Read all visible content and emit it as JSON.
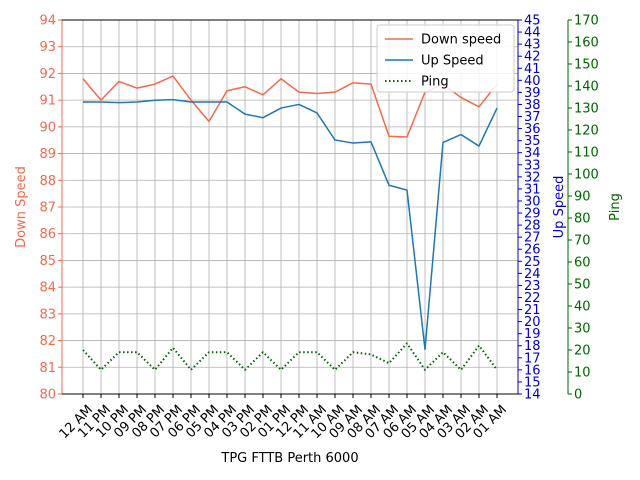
{
  "chart_data": {
    "type": "line",
    "xlabel": "TPG FTTB Perth 6000",
    "categories": [
      "12 AM",
      "11 PM",
      "10 PM",
      "09 PM",
      "08 PM",
      "07 PM",
      "06 PM",
      "05 PM",
      "04 PM",
      "03 PM",
      "02 PM",
      "01 PM",
      "12 PM",
      "11 AM",
      "10 AM",
      "09 AM",
      "08 AM",
      "07 AM",
      "06 AM",
      "05 AM",
      "04 AM",
      "03 AM",
      "02 AM",
      "01 AM"
    ],
    "axes": {
      "left": {
        "label": "Down Speed",
        "ylim": [
          80,
          94
        ],
        "ticks": [
          80,
          81,
          82,
          83,
          84,
          85,
          86,
          87,
          88,
          89,
          90,
          91,
          92,
          93,
          94
        ],
        "color": "#f4694d"
      },
      "right1": {
        "label": "Up Speed",
        "ylim": [
          14,
          45
        ],
        "ticks": [
          14,
          15,
          16,
          17,
          18,
          19,
          20,
          21,
          22,
          23,
          24,
          25,
          26,
          27,
          28,
          29,
          30,
          31,
          32,
          33,
          34,
          35,
          36,
          37,
          38,
          39,
          40,
          41,
          42,
          43,
          44,
          45
        ],
        "color": "#0000cc"
      },
      "right2": {
        "label": "Ping",
        "ylim": [
          0,
          170
        ],
        "ticks": [
          0,
          10,
          20,
          30,
          40,
          50,
          60,
          70,
          80,
          90,
          100,
          110,
          120,
          130,
          140,
          150,
          160,
          170
        ],
        "color": "#006400"
      }
    },
    "series": [
      {
        "name": "Down speed",
        "axis": "left",
        "color": "#f4694d",
        "style": "solid",
        "values": [
          91.8,
          91.0,
          91.7,
          91.45,
          91.6,
          91.9,
          91.0,
          90.2,
          91.35,
          91.5,
          91.2,
          91.8,
          91.3,
          91.25,
          91.3,
          91.65,
          91.6,
          89.65,
          89.62,
          91.3,
          91.6,
          91.1,
          90.75,
          91.6
        ]
      },
      {
        "name": "Up Speed",
        "axis": "right1",
        "color": "#1f77b4",
        "style": "solid",
        "values": [
          38.2,
          38.2,
          38.15,
          38.2,
          38.35,
          38.4,
          38.2,
          38.2,
          38.2,
          37.2,
          36.9,
          37.7,
          38.0,
          37.3,
          35.05,
          34.8,
          34.9,
          31.3,
          30.9,
          17.7,
          34.85,
          35.5,
          34.55,
          37.7
        ]
      },
      {
        "name": "Ping",
        "axis": "right2",
        "color": "#006400",
        "style": "dotted",
        "values": [
          20,
          11,
          19,
          19,
          11,
          21,
          11,
          19,
          19,
          11,
          19,
          11,
          19,
          19,
          11,
          19,
          18,
          14,
          23,
          11,
          19,
          11,
          22,
          11
        ]
      }
    ],
    "grid": true,
    "legend": "top-right"
  }
}
